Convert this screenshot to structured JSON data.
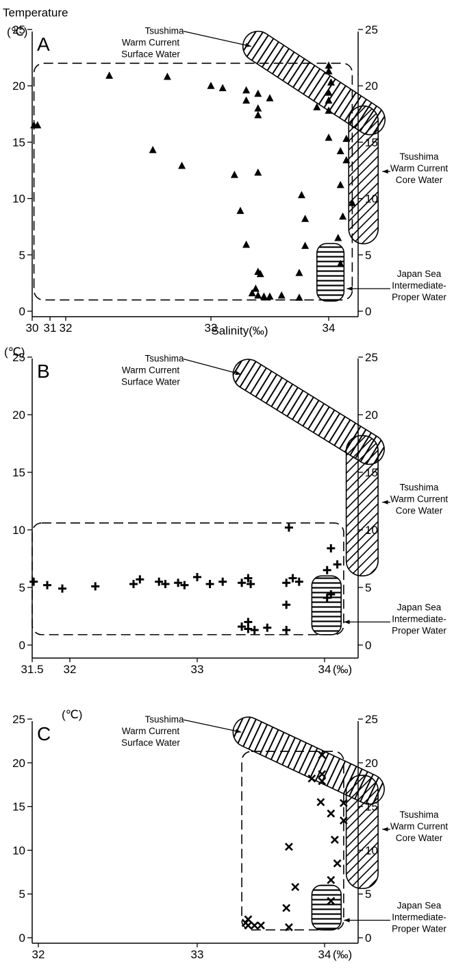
{
  "figure": {
    "y_title": "Temperature",
    "y_unit": "(℃)",
    "x_title": "Salinity(‰)",
    "x_unit": "(‰)"
  },
  "water_masses": {
    "surface": [
      "Tsushima",
      "Warm Current",
      "Surface Water"
    ],
    "core": [
      "Tsushima",
      "Warm Current",
      "Core Water"
    ],
    "intermediate": [
      "Japan Sea",
      "Intermediate-",
      "Proper Water"
    ],
    "surface_region": {
      "s": [
        33.4,
        34.35
      ],
      "t": [
        23.5,
        17
      ]
    },
    "core_region": {
      "s_left": 34.17,
      "s_right": 34.42,
      "t_top": 17,
      "t_bottom": 7.2
    },
    "intermediate_region": {
      "s": [
        33.9,
        34.13
      ],
      "t": [
        0.9,
        6.0
      ]
    }
  },
  "chart_data": [
    {
      "panel": "A",
      "type": "scatter",
      "marker": "triangle",
      "xlabel": "Salinity(‰)",
      "ylabel": "Temperature (℃)",
      "xlim": [
        30,
        34.5
      ],
      "ylim": [
        -0.5,
        25
      ],
      "x_ticks": [
        "30",
        "31",
        "32",
        "33",
        "34"
      ],
      "x_tick_values": [
        30,
        31,
        32,
        33,
        34
      ],
      "y_ticks": [
        "0",
        "5",
        "10",
        "15",
        "20",
        "25"
      ],
      "y_tick_values": [
        0,
        5,
        10,
        15,
        20,
        25
      ],
      "dashed_region": {
        "s": [
          30.1,
          34.2
        ],
        "t": [
          1.0,
          22.0
        ]
      },
      "points": [
        [
          30.1,
          16.5
        ],
        [
          30.3,
          16.5
        ],
        [
          32.3,
          20.9
        ],
        [
          32.7,
          20.8
        ],
        [
          33.0,
          20.0
        ],
        [
          33.1,
          19.8
        ],
        [
          33.3,
          19.6
        ],
        [
          33.3,
          18.7
        ],
        [
          33.4,
          19.3
        ],
        [
          33.4,
          18.0
        ],
        [
          33.4,
          17.4
        ],
        [
          33.5,
          18.9
        ],
        [
          32.6,
          14.3
        ],
        [
          32.8,
          12.9
        ],
        [
          33.2,
          12.1
        ],
        [
          33.4,
          12.3
        ],
        [
          33.25,
          8.9
        ],
        [
          33.3,
          5.9
        ],
        [
          33.4,
          3.5
        ],
        [
          33.42,
          3.3
        ],
        [
          33.38,
          2.0
        ],
        [
          33.35,
          1.6
        ],
        [
          33.4,
          1.4
        ],
        [
          33.45,
          1.3
        ],
        [
          33.5,
          1.3
        ],
        [
          33.6,
          1.4
        ],
        [
          33.75,
          1.2
        ],
        [
          33.75,
          3.4
        ],
        [
          33.77,
          10.3
        ],
        [
          33.8,
          8.2
        ],
        [
          33.8,
          5.8
        ],
        [
          33.9,
          18.1
        ],
        [
          34.0,
          21.8
        ],
        [
          34.0,
          21.3
        ],
        [
          34.02,
          20.3
        ],
        [
          34.0,
          19.4
        ],
        [
          34.0,
          18.7
        ],
        [
          34.0,
          17.8
        ],
        [
          34.0,
          15.4
        ],
        [
          34.1,
          14.2
        ],
        [
          34.15,
          15.3
        ],
        [
          34.15,
          13.4
        ],
        [
          34.1,
          11.2
        ],
        [
          34.12,
          8.4
        ],
        [
          34.2,
          9.6
        ],
        [
          34.08,
          6.5
        ],
        [
          34.1,
          4.2
        ]
      ]
    },
    {
      "panel": "B",
      "type": "scatter",
      "marker": "plus",
      "xlabel": "(‰)",
      "ylabel": "(℃)",
      "xlim": [
        31.5,
        34.5
      ],
      "ylim": [
        -0.5,
        25
      ],
      "x_ticks": [
        "31.5",
        "32",
        "33",
        "34"
      ],
      "x_tick_values": [
        31.5,
        32,
        33,
        34
      ],
      "y_ticks": [
        "0",
        "5",
        "10",
        "15",
        "20",
        "25"
      ],
      "y_tick_values": [
        0,
        5,
        10,
        15,
        20,
        25
      ],
      "dashed_region": {
        "s": [
          31.5,
          34.15
        ],
        "t": [
          0.9,
          10.6
        ]
      },
      "points": [
        [
          31.52,
          5.5
        ],
        [
          31.7,
          5.2
        ],
        [
          31.9,
          4.9
        ],
        [
          32.2,
          5.1
        ],
        [
          32.5,
          5.3
        ],
        [
          32.55,
          5.7
        ],
        [
          32.7,
          5.5
        ],
        [
          32.75,
          5.3
        ],
        [
          32.85,
          5.4
        ],
        [
          32.9,
          5.2
        ],
        [
          33.0,
          5.9
        ],
        [
          33.1,
          5.3
        ],
        [
          33.2,
          5.5
        ],
        [
          33.35,
          5.4
        ],
        [
          33.4,
          5.8
        ],
        [
          33.42,
          5.3
        ],
        [
          33.7,
          5.4
        ],
        [
          33.75,
          5.8
        ],
        [
          33.8,
          5.5
        ],
        [
          33.72,
          10.2
        ],
        [
          33.4,
          2.0
        ],
        [
          33.35,
          1.6
        ],
        [
          33.4,
          1.4
        ],
        [
          33.45,
          1.3
        ],
        [
          33.55,
          1.5
        ],
        [
          33.7,
          1.3
        ],
        [
          33.7,
          3.5
        ],
        [
          34.05,
          8.4
        ],
        [
          34.02,
          6.5
        ],
        [
          34.1,
          7.0
        ],
        [
          34.05,
          4.4
        ],
        [
          34.02,
          4.1
        ]
      ]
    },
    {
      "panel": "C",
      "type": "scatter",
      "marker": "cross",
      "xlabel": "(‰)",
      "ylabel": "(℃)",
      "xlim": [
        31.8,
        34.5
      ],
      "ylim": [
        -0.5,
        25
      ],
      "x_ticks": [
        "32",
        "33",
        "34"
      ],
      "x_tick_values": [
        32,
        33,
        34
      ],
      "y_ticks": [
        "0",
        "5",
        "10",
        "15",
        "20",
        "25"
      ],
      "y_tick_values": [
        0,
        5,
        10,
        15,
        20,
        25
      ],
      "dashed_region": {
        "s": [
          33.35,
          34.15
        ],
        "t": [
          0.9,
          21.3
        ]
      },
      "points": [
        [
          33.4,
          2.1
        ],
        [
          33.38,
          1.7
        ],
        [
          33.4,
          1.4
        ],
        [
          33.45,
          1.4
        ],
        [
          33.5,
          1.4
        ],
        [
          33.72,
          1.2
        ],
        [
          33.7,
          3.4
        ],
        [
          33.72,
          10.4
        ],
        [
          33.77,
          5.8
        ],
        [
          33.9,
          18.2
        ],
        [
          33.98,
          20.9
        ],
        [
          33.98,
          18.7
        ],
        [
          33.98,
          17.9
        ],
        [
          33.97,
          15.5
        ],
        [
          34.05,
          14.2
        ],
        [
          34.15,
          15.4
        ],
        [
          34.15,
          13.4
        ],
        [
          34.08,
          11.2
        ],
        [
          34.1,
          8.5
        ],
        [
          34.05,
          6.6
        ],
        [
          34.05,
          4.2
        ]
      ]
    }
  ]
}
